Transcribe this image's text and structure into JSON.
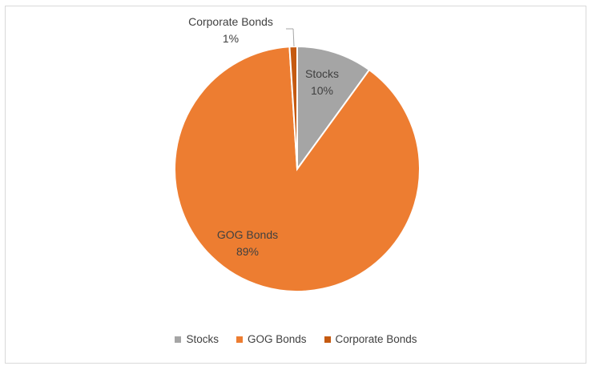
{
  "chart_data": {
    "type": "pie",
    "title": "",
    "slices": [
      {
        "label": "Stocks",
        "value": 10,
        "display": "10%",
        "color": "#A5A5A5"
      },
      {
        "label": "GOG Bonds",
        "value": 89,
        "display": "89%",
        "color": "#ED7D31"
      },
      {
        "label": "Corporate Bonds",
        "value": 1,
        "display": "1%",
        "color": "#C55A11"
      }
    ],
    "legend_position": "bottom"
  }
}
